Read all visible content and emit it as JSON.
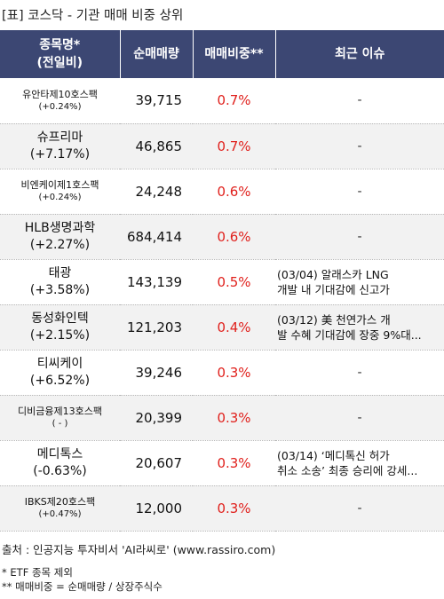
{
  "title": "[표] 코스닥 - 기관 매매 비중 상위",
  "header": {
    "col1_line1": "종목명*",
    "col1_line2": "(전일비)",
    "col2": "순매매량",
    "col3": "매매비중**",
    "col4": "최근 이슈"
  },
  "rows": [
    {
      "name": "유안타제10호스팩",
      "change": "(+0.24%)",
      "volume": "39,715",
      "ratio": "0.7%",
      "issue1": "-",
      "issue2": ""
    },
    {
      "name": "슈프리마",
      "change": "(+7.17%)",
      "volume": "46,865",
      "ratio": "0.7%",
      "issue1": "-",
      "issue2": ""
    },
    {
      "name": "비엔케이제1호스팩",
      "change": "(+0.24%)",
      "volume": "24,248",
      "ratio": "0.6%",
      "issue1": "-",
      "issue2": ""
    },
    {
      "name": "HLB생명과학",
      "change": "(+2.27%)",
      "volume": "684,414",
      "ratio": "0.6%",
      "issue1": "-",
      "issue2": ""
    },
    {
      "name": "태광",
      "change": "(+3.58%)",
      "volume": "143,139",
      "ratio": "0.5%",
      "issue1": "(03/04) 알래스카 LNG",
      "issue2": " 개발 내 기대감에 신고가"
    },
    {
      "name": "동성화인텍",
      "change": "(+2.15%)",
      "volume": "121,203",
      "ratio": "0.4%",
      "issue1": "(03/12) 美 천연가스 개",
      "issue2": "발 수혜 기대감에 장중 9%대..."
    },
    {
      "name": "티씨케이",
      "change": "(+6.52%)",
      "volume": "39,246",
      "ratio": "0.3%",
      "issue1": "-",
      "issue2": ""
    },
    {
      "name": "디비금융제13호스팩",
      "change": "( - )",
      "volume": "20,399",
      "ratio": "0.3%",
      "issue1": "-",
      "issue2": ""
    },
    {
      "name": "메디톡스",
      "change": "(-0.63%)",
      "volume": "20,607",
      "ratio": "0.3%",
      "issue1": "(03/14) ‘메디톡신 허가",
      "issue2": "취소 소송’ 최종 승리에 강세..."
    },
    {
      "name": "IBKS제20호스팩",
      "change": "(+0.47%)",
      "volume": "12,000",
      "ratio": "0.3%",
      "issue1": "-",
      "issue2": ""
    }
  ],
  "source": "출처 : 인공지능 투자비서 'AI라씨로' (www.rassiro.com)",
  "note1": "* ETF 종목 제외",
  "note2": "** 매매비중 = 순매매량 / 상장주식수"
}
